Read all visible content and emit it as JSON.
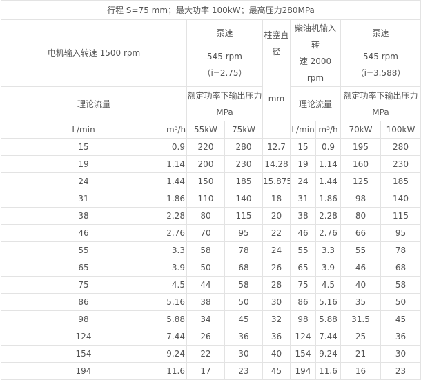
{
  "title": "行程 S=75 mm；最大功率  100kW；最高压力280MPa",
  "header": {
    "motor_input": "电机输入转速 1500 rpm",
    "pump_speed_1_label": "泵速",
    "pump_speed_1_value": "545 rpm（i=2.75）",
    "plunger_diameter": "柱塞直径",
    "plunger_unit": "mm",
    "diesel_input_1": "柴油机输入转",
    "diesel_input_2": "速 2000 rpm",
    "pump_speed_2_label": "泵速",
    "pump_speed_2_value": "545 rpm（i=3.588）",
    "theoretical_flow_1": "理论流量",
    "rated_pressure_1": "额定功率下输出压力",
    "rated_pressure_1_unit": "MPa",
    "theoretical_flow_2": "理论流量",
    "rated_pressure_2": "额定功率下输出压力",
    "rated_pressure_2_unit": "MPa",
    "columns": [
      "L/min",
      "m³/h",
      "55kW",
      "75kW",
      "L/min",
      "m³/h",
      "70kW",
      "100kW"
    ]
  },
  "rows": [
    [
      "15",
      "0.9",
      "220",
      "280",
      "12.7",
      "15",
      "0.9",
      "195",
      "280"
    ],
    [
      "19",
      "1.14",
      "200",
      "230",
      "14.28",
      "19",
      "1.14",
      "160",
      "230"
    ],
    [
      "24",
      "1.44",
      "150",
      "185",
      "15.875",
      "24",
      "1.44",
      "125",
      "185"
    ],
    [
      "31",
      "1.86",
      "110",
      "140",
      "18",
      "31",
      "1.86",
      "98",
      "140"
    ],
    [
      "38",
      "2.28",
      "80",
      "115",
      "20",
      "38",
      "2.28",
      "80",
      "115"
    ],
    [
      "46",
      "2.76",
      "70",
      "95",
      "22",
      "46",
      "2.76",
      "66",
      "95"
    ],
    [
      "55",
      "3.3",
      "58",
      "78",
      "24",
      "55",
      "3.3",
      "55",
      "78"
    ],
    [
      "65",
      "3.9",
      "50",
      "68",
      "26",
      "65",
      "3.9",
      "46",
      "68"
    ],
    [
      "75",
      "4.5",
      "44",
      "58",
      "28",
      "75",
      "4.5",
      "40",
      "58"
    ],
    [
      "86",
      "5.16",
      "38",
      "50",
      "30",
      "86",
      "5.16",
      "35",
      "50"
    ],
    [
      "98",
      "5.88",
      "34",
      "45",
      "32",
      "98",
      "5.88",
      "31.5",
      "45"
    ],
    [
      "124",
      "7.44",
      "26",
      "36",
      "36",
      "124",
      "7.44",
      "25",
      "36"
    ],
    [
      "154",
      "9.24",
      "22",
      "30",
      "40",
      "154",
      "9.24",
      "21",
      "30"
    ],
    [
      "194",
      "11.6",
      "17",
      "23",
      "45",
      "194",
      "11.6",
      "16",
      "23"
    ]
  ]
}
